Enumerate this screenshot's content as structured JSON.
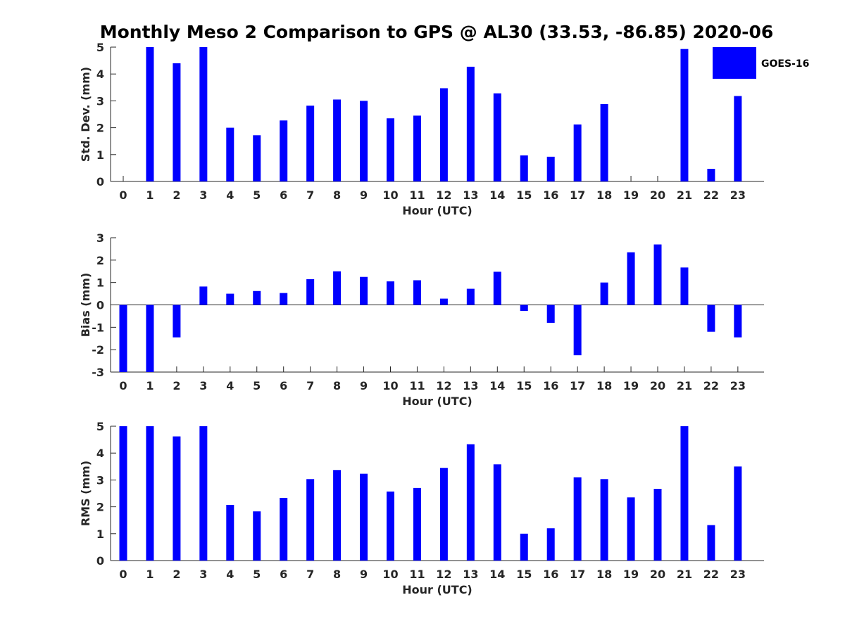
{
  "chart_data": {
    "title": "Monthly Meso 2 Comparison to GPS @ AL30 (33.53, -86.85) 2020-06",
    "legend": {
      "label": "GOES-16",
      "position": "top-right",
      "color": "#0000ff"
    },
    "bar_color": "#0000ff",
    "categories": [
      "0",
      "1",
      "2",
      "3",
      "4",
      "5",
      "6",
      "7",
      "8",
      "9",
      "10",
      "11",
      "12",
      "13",
      "14",
      "15",
      "16",
      "17",
      "18",
      "19",
      "20",
      "21",
      "22",
      "23"
    ],
    "panels": [
      {
        "type": "bar",
        "xlabel": "Hour (UTC)",
        "ylabel": "Std. Dev. (mm)",
        "ylim": [
          0,
          5
        ],
        "yticks": [
          "0",
          "1",
          "2",
          "3",
          "4",
          "5"
        ],
        "values": [
          0,
          5.0,
          4.4,
          5.0,
          2.0,
          1.72,
          2.27,
          2.82,
          3.05,
          3.0,
          2.35,
          2.45,
          3.47,
          4.27,
          3.28,
          0.97,
          0.92,
          2.12,
          2.88,
          0,
          0,
          4.93,
          0.47,
          3.18
        ]
      },
      {
        "type": "bar",
        "xlabel": "Hour (UTC)",
        "ylabel": "Bias (mm)",
        "ylim": [
          -3,
          3
        ],
        "yticks": [
          "-3",
          "-2",
          "-1",
          "0",
          "1",
          "2",
          "3"
        ],
        "values": [
          -3.0,
          -3.0,
          -1.45,
          0.82,
          0.5,
          0.62,
          0.53,
          1.15,
          1.5,
          1.25,
          1.05,
          1.1,
          0.28,
          0.72,
          1.48,
          -0.27,
          -0.8,
          -2.25,
          1.0,
          2.35,
          2.7,
          1.67,
          -1.2,
          -1.45
        ]
      },
      {
        "type": "bar",
        "xlabel": "Hour (UTC)",
        "ylabel": "RMS (mm)",
        "ylim": [
          0,
          5
        ],
        "yticks": [
          "0",
          "1",
          "2",
          "3",
          "4",
          "5"
        ],
        "values": [
          5.0,
          5.0,
          4.62,
          5.0,
          2.07,
          1.83,
          2.33,
          3.03,
          3.37,
          3.23,
          2.57,
          2.7,
          3.45,
          4.33,
          3.58,
          1.0,
          1.2,
          3.1,
          3.03,
          2.35,
          2.67,
          5.0,
          1.32,
          3.5
        ]
      }
    ]
  }
}
